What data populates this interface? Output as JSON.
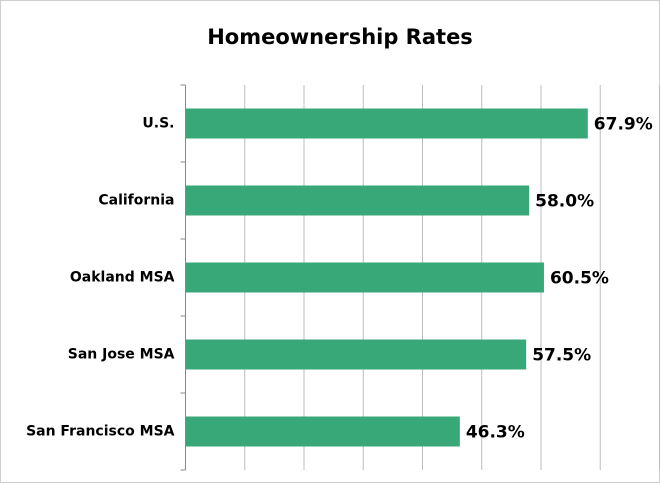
{
  "chart_data": {
    "type": "hbar",
    "title": "Homeownership Rates",
    "categories": [
      "U.S.",
      "California",
      "Oakland MSA",
      "San Jose MSA",
      "San Francisco MSA"
    ],
    "values": [
      67.9,
      58.0,
      60.5,
      57.5,
      46.3
    ],
    "value_labels": [
      "67.9%",
      "58.0%",
      "60.5%",
      "57.5%",
      "46.3%"
    ],
    "color": "#38a878",
    "xlim": [
      0,
      80
    ],
    "xticks": [
      0,
      10,
      20,
      30,
      40,
      50,
      60,
      70,
      80
    ],
    "grid": true
  }
}
